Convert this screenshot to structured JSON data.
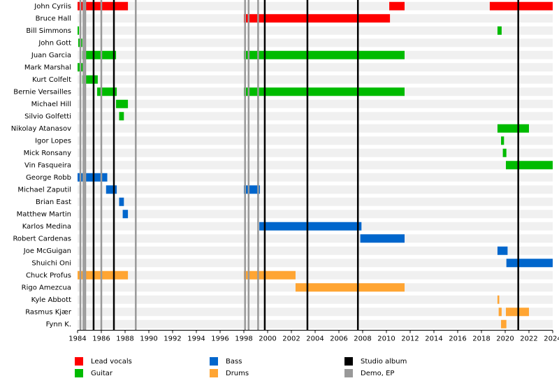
{
  "chart_data": {
    "type": "timeline",
    "xlim": [
      1984,
      2024
    ],
    "xticks": [
      1984,
      1986,
      1988,
      1990,
      1992,
      1994,
      1996,
      1998,
      2000,
      2002,
      2004,
      2006,
      2008,
      2010,
      2012,
      2014,
      2016,
      2018,
      2020,
      2022,
      2024
    ],
    "series": [
      {
        "name": "Lead vocals",
        "color": "#ff0000",
        "members": [
          {
            "name": "John Cyriis",
            "periods": [
              [
                1984,
                1988.24
              ],
              [
                2010.24,
                2011.53
              ],
              [
                2018.7,
                2024
              ]
            ]
          },
          {
            "name": "Bruce Hall",
            "periods": [
              [
                1998,
                2010.3
              ]
            ]
          }
        ]
      },
      {
        "name": "Guitar",
        "color": "#00bb00",
        "members": [
          {
            "name": "Bill Simmons",
            "periods": [
              [
                1984,
                1984.12
              ],
              [
                2019.35,
                2019.7
              ]
            ]
          },
          {
            "name": "John Gott",
            "periods": [
              [
                1984.06,
                1984.4
              ]
            ]
          },
          {
            "name": "Juan Garcia",
            "periods": [
              [
                1984.4,
                1987.24
              ],
              [
                1998,
                2011.53
              ]
            ]
          },
          {
            "name": "Mark Marshal",
            "periods": [
              [
                1984,
                1984.5
              ]
            ]
          },
          {
            "name": "Kurt Colfelt",
            "periods": [
              [
                1984.4,
                1985.7
              ]
            ]
          },
          {
            "name": "Bernie Versailles",
            "periods": [
              [
                1985.65,
                1987.3
              ],
              [
                1998,
                2011.53
              ]
            ]
          },
          {
            "name": "Michael Hill",
            "periods": [
              [
                1987.24,
                1988.24
              ]
            ]
          },
          {
            "name": "Silvio Golfetti",
            "periods": [
              [
                1987.5,
                1987.9
              ]
            ]
          },
          {
            "name": "Nikolay Atanasov",
            "periods": [
              [
                2019.35,
                2022
              ]
            ]
          },
          {
            "name": "Igor Lopes",
            "periods": [
              [
                2019.65,
                2019.9
              ]
            ]
          },
          {
            "name": "Mick Ronsany",
            "periods": [
              [
                2019.8,
                2020.1
              ]
            ]
          },
          {
            "name": "Vin Fasqueira",
            "periods": [
              [
                2020.06,
                2024
              ]
            ]
          }
        ]
      },
      {
        "name": "Bass",
        "color": "#0066cc",
        "members": [
          {
            "name": "George Robb",
            "periods": [
              [
                1984,
                1986.5
              ]
            ]
          },
          {
            "name": "Michael Zaputil",
            "periods": [
              [
                1986.4,
                1987.3
              ],
              [
                1998,
                1999.35
              ]
            ]
          },
          {
            "name": "Brian East",
            "periods": [
              [
                1987.5,
                1987.9
              ]
            ]
          },
          {
            "name": "Matthew Martin",
            "periods": [
              [
                1987.8,
                1988.24
              ]
            ]
          },
          {
            "name": "Karlos Medina",
            "periods": [
              [
                1999.3,
                2007.9
              ]
            ]
          },
          {
            "name": "Robert Cardenas",
            "periods": [
              [
                2007.8,
                2011.53
              ]
            ]
          },
          {
            "name": "Joe McGuigan",
            "periods": [
              [
                2019.35,
                2020.2
              ]
            ]
          },
          {
            "name": "Shuichi Oni",
            "periods": [
              [
                2020.1,
                2024
              ]
            ]
          }
        ]
      },
      {
        "name": "Drums",
        "color": "#ffa533",
        "members": [
          {
            "name": "Chuck Profus",
            "periods": [
              [
                1984,
                1988.24
              ],
              [
                1998,
                2002.35
              ]
            ]
          },
          {
            "name": "Rigo Amezcua",
            "periods": [
              [
                2002.35,
                2011.53
              ]
            ]
          },
          {
            "name": "Kyle Abbott",
            "periods": [
              [
                2019.35,
                2019.5
              ]
            ]
          },
          {
            "name": "Rasmus Kjær",
            "periods": [
              [
                2019.45,
                2019.7
              ],
              [
                2020.06,
                2022
              ]
            ]
          },
          {
            "name": "Fynn K.",
            "periods": [
              [
                2019.65,
                2020.1
              ]
            ]
          }
        ]
      }
    ],
    "events": [
      {
        "name": "Studio album",
        "color": "#000000",
        "values": [
          1985.35,
          1987.06,
          1999.76,
          2003.35,
          2007.6,
          2021.1
        ]
      },
      {
        "name": "Demo, EP",
        "color": "#999999",
        "values": [
          1984.24,
          1984.5,
          1984.65,
          1986.0,
          1988.9,
          1998.1,
          1998.4,
          1999.2
        ]
      }
    ]
  }
}
